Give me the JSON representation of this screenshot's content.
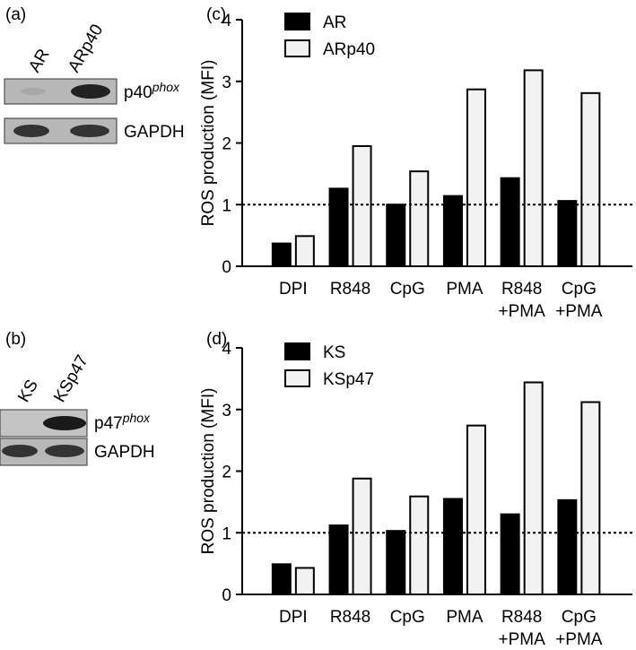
{
  "blots": [
    {
      "panel": "(a)",
      "lanes": [
        "AR",
        "ARp40"
      ],
      "rows": [
        {
          "base": "p40",
          "superscript": "phox"
        },
        {
          "base": "GAPDH"
        }
      ]
    },
    {
      "panel": "(b)",
      "lanes": [
        "KS",
        "KSp47"
      ],
      "rows": [
        {
          "base": "p47",
          "superscript": "phox"
        },
        {
          "base": "GAPDH"
        }
      ]
    }
  ],
  "chart_data": [
    {
      "type": "bar",
      "panel": "(c)",
      "y_label": "ROS production (MFI)",
      "categories": [
        "DPI",
        "R848",
        "CpG",
        "PMA",
        "R848\n+PMA",
        "CpG\n+PMA"
      ],
      "series": [
        {
          "name": "AR",
          "color": "#000000",
          "values": [
            0.37,
            1.26,
            1.0,
            1.14,
            1.43,
            1.06
          ]
        },
        {
          "name": "ARp40",
          "color": "#f2f2f2",
          "values": [
            0.49,
            1.95,
            1.54,
            2.87,
            3.18,
            2.81
          ]
        }
      ],
      "ylim": [
        0,
        4
      ],
      "yticks": [
        0,
        1,
        2,
        3,
        4
      ],
      "reference_line": 1,
      "legend": "top-left"
    },
    {
      "type": "bar",
      "panel": "(d)",
      "y_label": "ROS production (MFI)",
      "categories": [
        "DPI",
        "R848",
        "CpG",
        "PMA",
        "R848\n+PMA",
        "CpG\n+PMA"
      ],
      "series": [
        {
          "name": "KS",
          "color": "#000000",
          "values": [
            0.49,
            1.12,
            1.03,
            1.55,
            1.3,
            1.53
          ]
        },
        {
          "name": "KSp47",
          "color": "#f2f2f2",
          "values": [
            0.43,
            1.88,
            1.59,
            2.74,
            3.44,
            3.12
          ]
        }
      ],
      "ylim": [
        0,
        4
      ],
      "yticks": [
        0,
        1,
        2,
        3,
        4
      ],
      "reference_line": 1,
      "legend": "top-left"
    }
  ]
}
